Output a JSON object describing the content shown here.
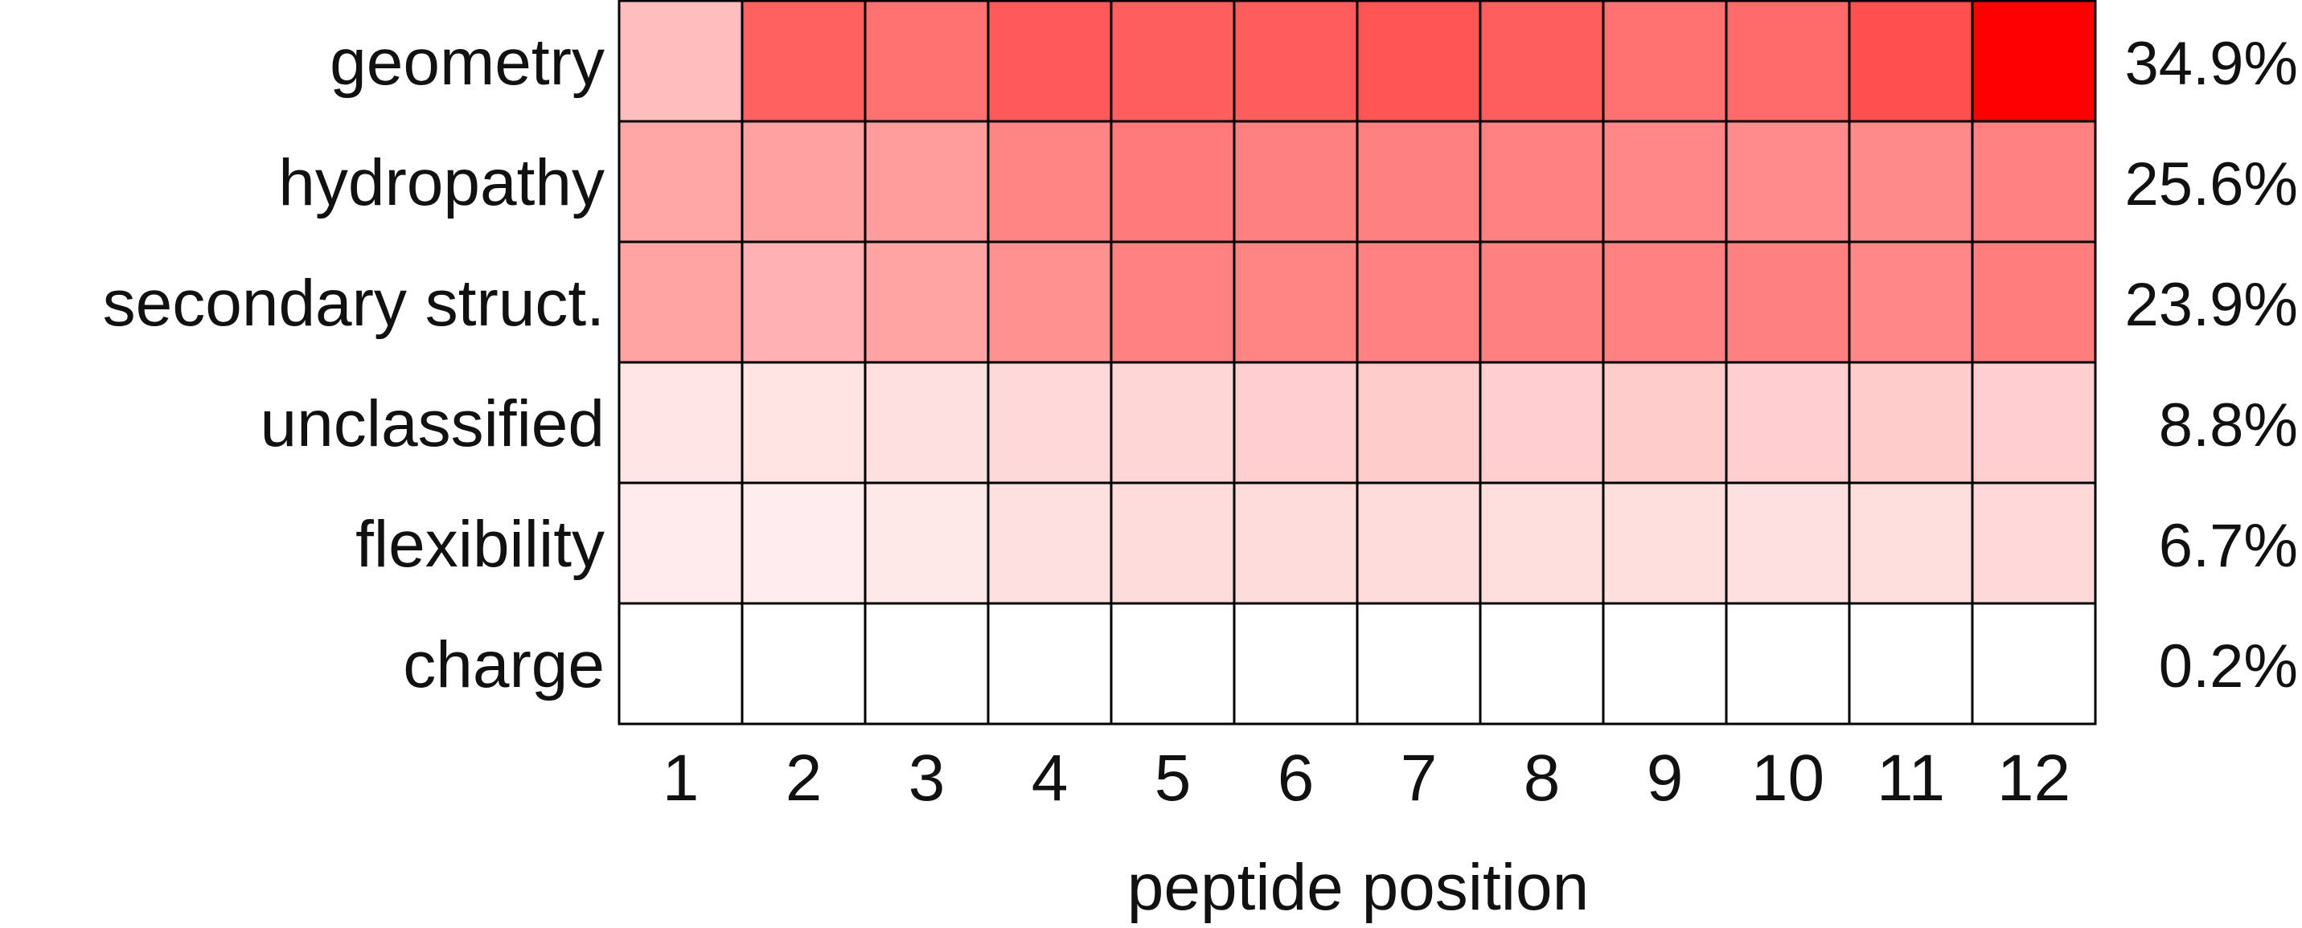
{
  "chart_data": {
    "type": "heatmap",
    "title": "",
    "xlabel": "peptide position",
    "ylabel": "",
    "x_categories": [
      "1",
      "2",
      "3",
      "4",
      "5",
      "6",
      "7",
      "8",
      "9",
      "10",
      "11",
      "12"
    ],
    "y_categories": [
      "geometry",
      "hydropathy",
      "secondary struct.",
      "unclassified",
      "flexibility",
      "charge"
    ],
    "row_totals": [
      "34.9%",
      "25.6%",
      "23.9%",
      "8.8%",
      "6.7%",
      "0.2%"
    ],
    "values": [
      [
        0.26,
        0.62,
        0.56,
        0.65,
        0.63,
        0.64,
        0.67,
        0.63,
        0.56,
        0.59,
        0.69,
        1.0
      ],
      [
        0.35,
        0.37,
        0.39,
        0.48,
        0.52,
        0.5,
        0.5,
        0.49,
        0.47,
        0.45,
        0.46,
        0.49
      ],
      [
        0.36,
        0.31,
        0.36,
        0.43,
        0.49,
        0.48,
        0.49,
        0.5,
        0.49,
        0.5,
        0.47,
        0.51
      ],
      [
        0.1,
        0.11,
        0.12,
        0.15,
        0.16,
        0.19,
        0.2,
        0.19,
        0.2,
        0.19,
        0.2,
        0.19
      ],
      [
        0.08,
        0.07,
        0.09,
        0.12,
        0.14,
        0.14,
        0.14,
        0.13,
        0.13,
        0.12,
        0.13,
        0.15
      ],
      [
        0.0,
        0.0,
        0.0,
        0.0,
        0.0,
        0.0,
        0.0,
        0.0,
        0.0,
        0.0,
        0.0,
        0.0
      ]
    ],
    "colormap": {
      "low": "#ffffff",
      "high": "#ff0000"
    },
    "grid": true,
    "legend": "none"
  }
}
